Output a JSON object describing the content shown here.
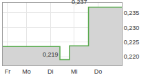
{
  "chart_data": {
    "type": "line",
    "line_style": "step",
    "color": "#55a84a",
    "categories": [
      null,
      "Fr",
      null,
      null,
      null,
      "Mo",
      null,
      null,
      null,
      null,
      "Di",
      null,
      null,
      null,
      null,
      "Mi",
      null,
      null,
      null,
      null,
      "Do",
      null,
      null,
      null,
      null,
      null
    ],
    "values": [
      0.2235,
      0.2235,
      0.2235,
      0.2235,
      0.2235,
      0.2235,
      0.2235,
      0.2235,
      0.2235,
      0.2235,
      0.2235,
      0.2235,
      0.219,
      0.219,
      0.2237,
      0.2237,
      0.2237,
      0.2237,
      0.237,
      0.237,
      0.237,
      0.237,
      0.237,
      0.237,
      0.237,
      0.237
    ],
    "ylim": [
      0.217,
      0.2385
    ],
    "yticks": [
      {
        "value": 0.22,
        "label": "0,220"
      },
      {
        "value": 0.225,
        "label": "0,225"
      },
      {
        "value": 0.23,
        "label": "0,230"
      },
      {
        "value": 0.235,
        "label": "0,235"
      }
    ],
    "annotations": [
      {
        "text": "0,237",
        "x": 18,
        "value": 0.237
      },
      {
        "text": "0,219",
        "x": 12,
        "value": 0.219
      }
    ],
    "grid": true
  }
}
